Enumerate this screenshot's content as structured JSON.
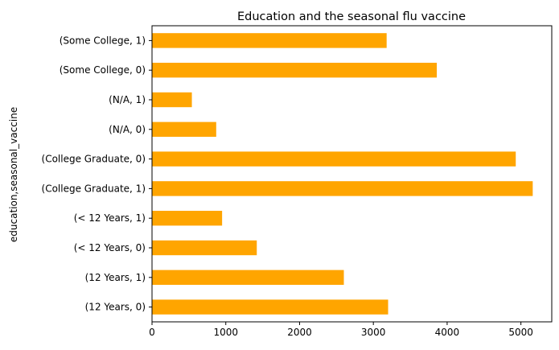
{
  "chart_data": {
    "type": "bar",
    "orientation": "horizontal",
    "title": "Education and the seasonal flu vaccine",
    "xlabel": "",
    "ylabel": "education,seasonal_vaccine",
    "categories": [
      "(12 Years, 0)",
      "(12 Years, 1)",
      "(< 12 Years, 0)",
      "(< 12 Years, 1)",
      "(College Graduate, 1)",
      "(College Graduate, 0)",
      "(N/A, 0)",
      "(N/A, 1)",
      "(Some College, 0)",
      "(Some College, 1)"
    ],
    "values": [
      3200,
      2600,
      1420,
      950,
      5160,
      4930,
      870,
      540,
      3860,
      3180
    ],
    "xlim": [
      0,
      5418
    ],
    "xticks": [
      0,
      1000,
      2000,
      3000,
      4000,
      5000
    ],
    "xtick_labels": [
      "0",
      "1000",
      "2000",
      "3000",
      "4000",
      "5000"
    ],
    "bar_color": "#ffa500",
    "grid": false,
    "legend": "none"
  }
}
